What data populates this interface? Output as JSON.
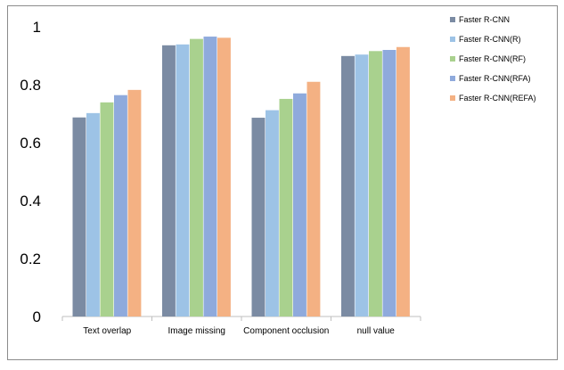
{
  "chart_data": {
    "type": "bar",
    "title": "",
    "xlabel": "",
    "ylabel": "",
    "ylim": [
      0,
      1
    ],
    "yticks": [
      "0",
      "0.2",
      "0.4",
      "0.6",
      "0.8",
      "1"
    ],
    "ytick_values": [
      0,
      0.2,
      0.4,
      0.6,
      0.8,
      1.0
    ],
    "grid": false,
    "legend_position": "right",
    "categories": [
      "Text overlap",
      "Image missing",
      "Component occlusion",
      "null value"
    ],
    "series": [
      {
        "name": "Faster R-CNN",
        "color": "#7b8ba3",
        "values": [
          0.687,
          0.936,
          0.686,
          0.899
        ]
      },
      {
        "name": "Faster R-CNN(R)",
        "color": "#9dc3e6",
        "values": [
          0.702,
          0.939,
          0.712,
          0.904
        ]
      },
      {
        "name": "Faster R-CNN(RF)",
        "color": "#a9d18e",
        "values": [
          0.739,
          0.958,
          0.751,
          0.916
        ]
      },
      {
        "name": "Faster R-CNN(RFA)",
        "color": "#8faadc",
        "values": [
          0.764,
          0.966,
          0.77,
          0.92
        ]
      },
      {
        "name": "Faster R-CNN(REFA)",
        "color": "#f4b183",
        "values": [
          0.782,
          0.962,
          0.81,
          0.93
        ]
      }
    ]
  }
}
